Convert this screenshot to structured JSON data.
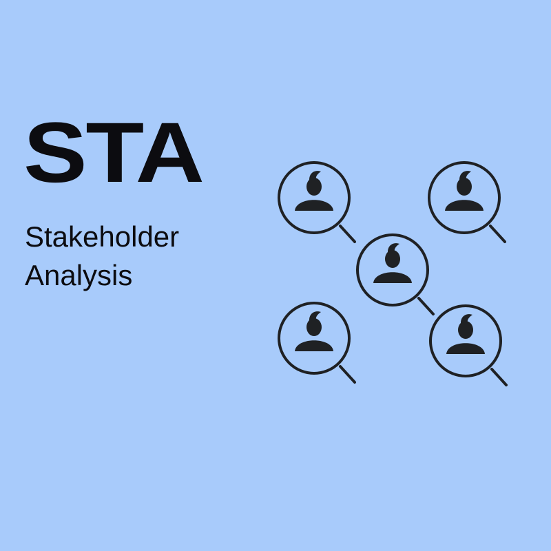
{
  "slide": {
    "title": "STA",
    "subtitle_line1": "Stakeholder",
    "subtitle_line2": "Analysis"
  },
  "colors": {
    "background": "#a8cbfb",
    "ink": "#1f2124"
  },
  "icons": [
    "person-search-icon",
    "person-search-icon",
    "person-search-icon",
    "person-search-icon",
    "person-search-icon"
  ]
}
